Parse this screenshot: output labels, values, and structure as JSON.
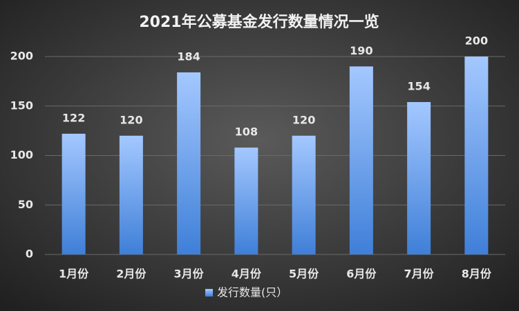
{
  "chart_data": {
    "type": "bar",
    "title": "2021年公募基金发行数量情况一览",
    "categories": [
      "1月份",
      "2月份",
      "3月份",
      "4月份",
      "5月份",
      "6月份",
      "7月份",
      "8月份"
    ],
    "series": [
      {
        "name": "发行数量(只）",
        "color": "#a4c8ff",
        "values": [
          122,
          120,
          184,
          108,
          120,
          190,
          154,
          200
        ]
      }
    ],
    "ylim": [
      0,
      200
    ],
    "yticks": [
      0,
      50,
      100,
      150,
      200
    ],
    "grid": true,
    "legend": "bottom"
  }
}
